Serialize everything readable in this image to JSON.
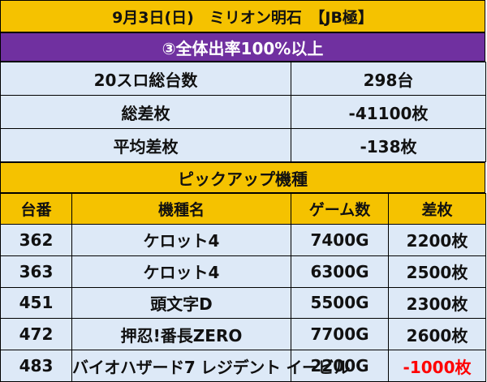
{
  "header": {
    "title": "9月3日(日)　ミリオン明石　【JB極】"
  },
  "section": {
    "title": "③全体出率100%以上"
  },
  "summary": {
    "rows": [
      {
        "label": "20スロ総台数",
        "value": "298台"
      },
      {
        "label": "総差枚",
        "value": "-41100枚"
      },
      {
        "label": "平均差枚",
        "value": "-138枚"
      }
    ]
  },
  "pickup": {
    "title": "ピックアップ機種",
    "columns": [
      "台番",
      "機種名",
      "ゲーム数",
      "差枚"
    ],
    "rows": [
      {
        "machine_no": "362",
        "model": "ケロット4",
        "games": "7400G",
        "diff": "2200枚"
      },
      {
        "machine_no": "363",
        "model": "ケロット4",
        "games": "6300G",
        "diff": "2500枚"
      },
      {
        "machine_no": "451",
        "model": "頭文字D",
        "games": "5500G",
        "diff": "2300枚"
      },
      {
        "machine_no": "472",
        "model": "押忍!番長ZERO",
        "games": "7700G",
        "diff": "2600枚"
      },
      {
        "machine_no": "483",
        "model": "バイオハザード7 レジデント イービル",
        "games": "2200G",
        "diff": "-1000枚"
      }
    ]
  },
  "colors": {
    "title_background": "#f5c200",
    "section_background": "#7030a0",
    "row_background": "#dde9f7",
    "negative_value": "#ff0000"
  }
}
